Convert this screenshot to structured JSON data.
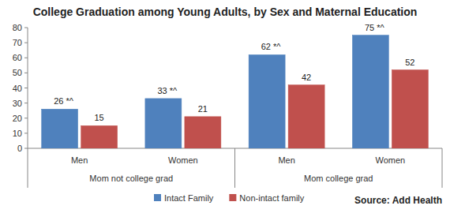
{
  "chart_data": {
    "type": "bar",
    "title": "College Graduation among Young Adults, by Sex and Maternal Education",
    "categories": [
      "Men",
      "Women",
      "Men",
      "Women"
    ],
    "category_groups": [
      "Mom not college grad",
      "Mom not college grad",
      "Mom college grad",
      "Mom college grad"
    ],
    "series": [
      {
        "name": "Intact Family",
        "color": "#4f81bd",
        "values": [
          26,
          33,
          62,
          75
        ],
        "value_labels": [
          "26 *^",
          "33 *^",
          "62 *^",
          "75 *^"
        ]
      },
      {
        "name": "Non-intact family",
        "color": "#c0504d",
        "values": [
          15,
          21,
          42,
          52
        ]
      }
    ],
    "ylim": [
      0,
      80
    ],
    "yticks": [
      0,
      10,
      20,
      30,
      40,
      50,
      60,
      70,
      80
    ],
    "grid": false,
    "legend": "bottom",
    "data_labels": true,
    "source": "Source: Add Health"
  }
}
